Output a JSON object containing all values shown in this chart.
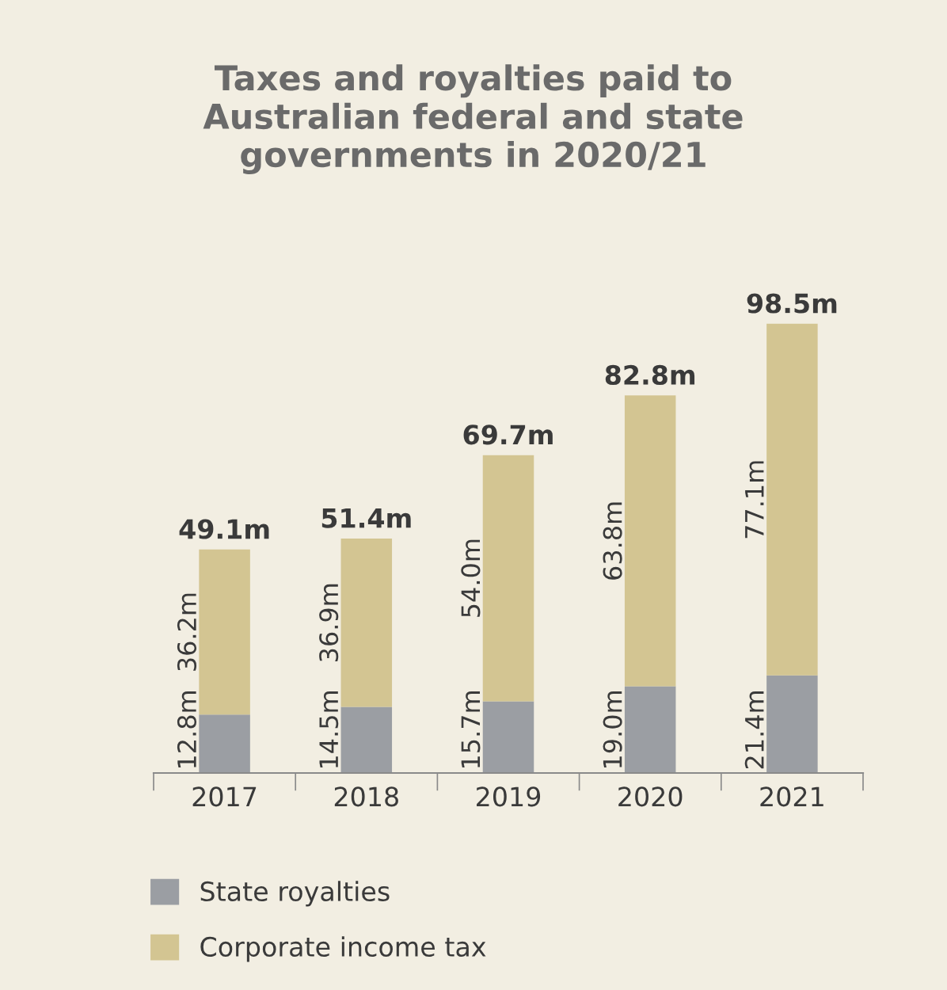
{
  "chart_data": {
    "type": "bar",
    "title": "Taxes and royalties paid to Australian federal and state governments in 2020/21",
    "categories": [
      "2017",
      "2018",
      "2019",
      "2020",
      "2021"
    ],
    "stacked": true,
    "series": [
      {
        "name": "State royalties",
        "color": "#9b9ea3",
        "values": [
          12.8,
          14.5,
          15.7,
          19.0,
          21.4
        ],
        "value_labels": [
          "12.8m",
          "14.5m",
          "15.7m",
          "19.0m",
          "21.4m"
        ]
      },
      {
        "name": "Corporate income tax",
        "color": "#d3c592",
        "values": [
          36.2,
          36.9,
          54.0,
          63.8,
          77.1
        ],
        "value_labels": [
          "36.2m",
          "36.9m",
          "54.0m",
          "63.8m",
          "77.1m"
        ]
      }
    ],
    "totals": [
      "49.1m",
      "51.4m",
      "69.7m",
      "82.8m",
      "98.5m"
    ],
    "legend": "bottom",
    "grid": false,
    "tick_labels": "x"
  }
}
